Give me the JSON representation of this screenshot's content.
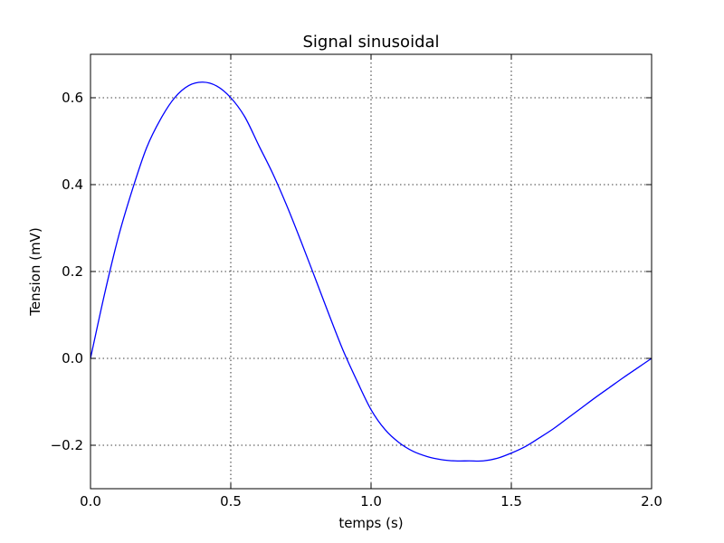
{
  "chart_data": {
    "type": "line",
    "title": "Signal sinusoidal",
    "xlabel": "temps (s)",
    "ylabel": "Tension (mV)",
    "xlim": [
      0.0,
      2.0
    ],
    "ylim": [
      -0.3,
      0.7
    ],
    "xticks": [
      0.0,
      0.5,
      1.0,
      1.5,
      2.0
    ],
    "xtick_labels": [
      "0.0",
      "0.5",
      "1.0",
      "1.5",
      "2.0"
    ],
    "yticks": [
      -0.2,
      0.0,
      0.2,
      0.4,
      0.6
    ],
    "ytick_labels": [
      "−0.2",
      "0.0",
      "0.2",
      "0.4",
      "0.6"
    ],
    "grid": true,
    "series": [
      {
        "color": "#0000ff",
        "x": [
          0.0,
          0.05,
          0.1,
          0.15,
          0.2,
          0.25,
          0.3,
          0.35,
          0.4,
          0.45,
          0.5,
          0.55,
          0.6,
          0.65,
          0.7,
          0.75,
          0.8,
          0.85,
          0.9,
          0.95,
          1.0,
          1.05,
          1.1,
          1.15,
          1.2,
          1.25,
          1.3,
          1.35,
          1.4,
          1.45,
          1.5,
          1.55,
          1.6,
          1.65,
          1.7,
          1.75,
          1.8,
          1.85,
          1.9,
          1.95,
          2.0
        ],
        "y": [
          0.0,
          0.148,
          0.281,
          0.39,
          0.485,
          0.551,
          0.6,
          0.628,
          0.636,
          0.627,
          0.6,
          0.556,
          0.49,
          0.425,
          0.351,
          0.27,
          0.186,
          0.101,
          0.019,
          -0.052,
          -0.118,
          -0.164,
          -0.194,
          -0.214,
          -0.226,
          -0.233,
          -0.236,
          -0.236,
          -0.236,
          -0.23,
          -0.218,
          -0.203,
          -0.183,
          -0.162,
          -0.138,
          -0.114,
          -0.09,
          -0.067,
          -0.044,
          -0.022,
          0.0
        ]
      }
    ]
  }
}
